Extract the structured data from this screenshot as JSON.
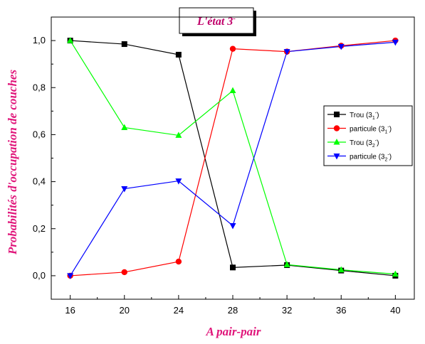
{
  "chart_data": {
    "type": "line",
    "title": "L'état 3",
    "title_superscript": "-",
    "xlabel": "A pair-pair",
    "ylabel": "Probabilités d'occupation de couches",
    "x": [
      16,
      20,
      24,
      28,
      32,
      36,
      40
    ],
    "xlim": [
      14.6,
      41.4
    ],
    "ylim": [
      -0.1,
      1.1
    ],
    "xticks": [
      "16",
      "20",
      "24",
      "28",
      "32",
      "36",
      "40"
    ],
    "yticks": [
      "0,0",
      "0,2",
      "0,4",
      "0,6",
      "0,8",
      "1,0"
    ],
    "ytick_values": [
      0,
      0.2,
      0.4,
      0.6,
      0.8,
      1.0
    ],
    "grid": false,
    "legend_position": "right",
    "series": [
      {
        "name": "Trou (3",
        "sub": "1",
        "sup": "-",
        "color": "#000000",
        "marker": "square",
        "values": [
          1.0,
          0.985,
          0.94,
          0.035,
          0.045,
          0.022,
          0.0
        ]
      },
      {
        "name": "particule (3",
        "sub": "1",
        "sup": "-",
        "color": "#ff0000",
        "marker": "circle",
        "values": [
          0.0,
          0.015,
          0.06,
          0.965,
          0.953,
          0.978,
          1.0
        ]
      },
      {
        "name": "Trou (3",
        "sub": "2",
        "sup": "-",
        "color": "#00ff00",
        "marker": "triangle-up",
        "values": [
          1.0,
          0.63,
          0.597,
          0.787,
          0.047,
          0.025,
          0.007
        ]
      },
      {
        "name": "particule (3",
        "sub": "2",
        "sup": "-",
        "color": "#0000ff",
        "marker": "triangle-down",
        "values": [
          0.0,
          0.37,
          0.403,
          0.213,
          0.953,
          0.975,
          0.993
        ]
      }
    ]
  }
}
